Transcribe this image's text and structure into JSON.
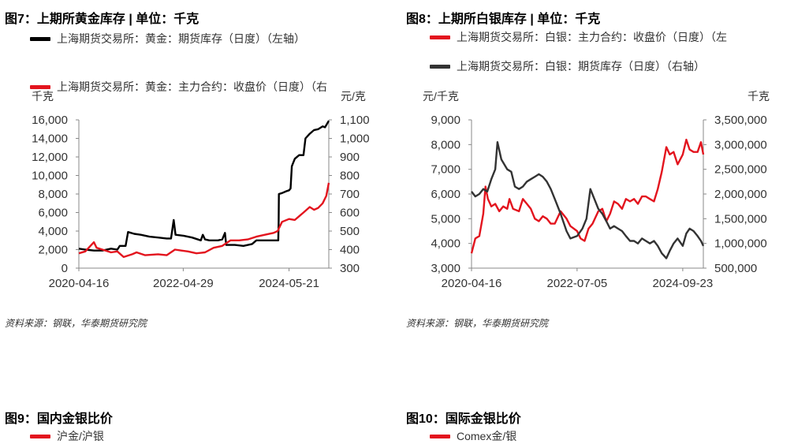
{
  "colors": {
    "black": "#000000",
    "red": "#e3141e",
    "darkgray": "#333333"
  },
  "fig7": {
    "title": "图7：上期所黄金库存 |  单位：千克",
    "legend": [
      "上海期货交易所：黄金：期货库存（日度）（左轴）",
      "上海期货交易所：黄金：主力合约：收盘价（日度）（右"
    ],
    "left_unit": "千克",
    "right_unit": "元/克",
    "source": "资料来源：钢联，华泰期货研究院"
  },
  "fig8": {
    "title": "图8：上期所白银库存 | 单位：千克",
    "legend": [
      "上海期货交易所：白银：主力合约：收盘价（日度）（左",
      "上海期货交易所：白银：期货库存（日度）（右轴）"
    ],
    "left_unit": "元/千克",
    "right_unit": "千克",
    "source": "资料来源：钢联，华泰期货研究院"
  },
  "fig9": {
    "title": "图9：国内金银比价",
    "legend": [
      "沪金/沪银"
    ]
  },
  "fig10": {
    "title": "图10：国际金银比价",
    "legend": [
      "Comex金/银"
    ]
  },
  "chart_data": [
    {
      "type": "line",
      "title": "图7：上期所黄金库存 |  单位：千克",
      "x_ticks": [
        "2020-04-16",
        "2022-04-29",
        "2024-05-21"
      ],
      "x_range": [
        "2020-04-16",
        "2025-02-28"
      ],
      "y_left": {
        "label": "千克",
        "ylim": [
          0,
          16000
        ],
        "ticks": [
          "0",
          "2,000",
          "4,000",
          "6,000",
          "8,000",
          "10,000",
          "12,000",
          "14,000",
          "16,000"
        ]
      },
      "y_right": {
        "label": "元/克",
        "ylim": [
          300,
          1100
        ],
        "ticks": [
          "300",
          "400",
          "500",
          "600",
          "700",
          "800",
          "900",
          "1,000",
          "1,100"
        ]
      },
      "grid": false,
      "legend_position": "top",
      "series": [
        {
          "name": "上海期货交易所：黄金：期货库存（日度）（左轴）",
          "axis": "left",
          "color": "#000000",
          "points": [
            [
              "2020-04-16",
              2100
            ],
            [
              "2020-06-01",
              2000
            ],
            [
              "2020-08-01",
              1900
            ],
            [
              "2020-10-01",
              1900
            ],
            [
              "2020-12-01",
              2100
            ],
            [
              "2021-01-15",
              2000
            ],
            [
              "2021-02-01",
              2400
            ],
            [
              "2021-03-15",
              2400
            ],
            [
              "2021-04-01",
              3900
            ],
            [
              "2021-05-15",
              3700
            ],
            [
              "2021-07-01",
              3600
            ],
            [
              "2021-09-01",
              3400
            ],
            [
              "2021-11-01",
              3300
            ],
            [
              "2022-01-01",
              3200
            ],
            [
              "2022-02-01",
              3200
            ],
            [
              "2022-02-20",
              5200
            ],
            [
              "2022-03-05",
              3600
            ],
            [
              "2022-05-01",
              3500
            ],
            [
              "2022-07-01",
              3300
            ],
            [
              "2022-09-01",
              3000
            ],
            [
              "2022-09-15",
              3600
            ],
            [
              "2022-10-01",
              3100
            ],
            [
              "2022-11-01",
              3000
            ],
            [
              "2022-12-01",
              3000
            ],
            [
              "2023-01-01",
              3000
            ],
            [
              "2023-02-01",
              3100
            ],
            [
              "2023-02-20",
              3800
            ],
            [
              "2023-03-01",
              2500
            ],
            [
              "2023-05-01",
              2500
            ],
            [
              "2023-07-01",
              2400
            ],
            [
              "2023-09-01",
              2600
            ],
            [
              "2023-10-01",
              3000
            ],
            [
              "2023-12-01",
              3000
            ],
            [
              "2024-03-01",
              3000
            ],
            [
              "2024-03-05",
              3000
            ],
            [
              "2024-03-08",
              5000
            ],
            [
              "2024-03-10",
              8000
            ],
            [
              "2024-04-01",
              8100
            ],
            [
              "2024-05-01",
              8300
            ],
            [
              "2024-05-21",
              8400
            ],
            [
              "2024-06-01",
              8600
            ],
            [
              "2024-06-10",
              11000
            ],
            [
              "2024-07-01",
              11800
            ],
            [
              "2024-08-01",
              12200
            ],
            [
              "2024-09-01",
              12200
            ],
            [
              "2024-09-15",
              14000
            ],
            [
              "2024-10-15",
              14500
            ],
            [
              "2024-11-15",
              14900
            ],
            [
              "2024-12-15",
              15000
            ],
            [
              "2025-01-15",
              15300
            ],
            [
              "2025-02-01",
              15200
            ],
            [
              "2025-02-28",
              15900
            ]
          ]
        },
        {
          "name": "上海期货交易所：黄金：主力合约：收盘价（日度）（右",
          "axis": "right",
          "color": "#e3141e",
          "points": [
            [
              "2020-04-16",
              380
            ],
            [
              "2020-06-01",
              390
            ],
            [
              "2020-08-01",
              440
            ],
            [
              "2020-08-20",
              410
            ],
            [
              "2020-10-01",
              400
            ],
            [
              "2020-12-01",
              385
            ],
            [
              "2021-01-15",
              390
            ],
            [
              "2021-03-01",
              360
            ],
            [
              "2021-05-01",
              375
            ],
            [
              "2021-06-01",
              385
            ],
            [
              "2021-08-01",
              370
            ],
            [
              "2021-11-01",
              375
            ],
            [
              "2022-01-01",
              370
            ],
            [
              "2022-03-01",
              400
            ],
            [
              "2022-04-15",
              395
            ],
            [
              "2022-06-01",
              390
            ],
            [
              "2022-08-01",
              380
            ],
            [
              "2022-10-01",
              385
            ],
            [
              "2022-12-01",
              410
            ],
            [
              "2023-02-01",
              420
            ],
            [
              "2023-04-01",
              450
            ],
            [
              "2023-06-01",
              450
            ],
            [
              "2023-08-01",
              455
            ],
            [
              "2023-10-01",
              470
            ],
            [
              "2023-12-01",
              480
            ],
            [
              "2024-02-01",
              490
            ],
            [
              "2024-03-01",
              500
            ],
            [
              "2024-04-01",
              550
            ],
            [
              "2024-05-21",
              565
            ],
            [
              "2024-07-01",
              560
            ],
            [
              "2024-08-01",
              580
            ],
            [
              "2024-09-01",
              600
            ],
            [
              "2024-10-15",
              630
            ],
            [
              "2024-11-15",
              615
            ],
            [
              "2024-12-15",
              625
            ],
            [
              "2025-01-15",
              650
            ],
            [
              "2025-02-10",
              690
            ],
            [
              "2025-02-28",
              760
            ]
          ]
        }
      ]
    },
    {
      "type": "line",
      "title": "图8：上期所白银库存 | 单位：千克",
      "x_ticks": [
        "2020-04-16",
        "2022-07-05",
        "2024-09-23"
      ],
      "x_range": [
        "2020-04-16",
        "2025-02-28"
      ],
      "y_left": {
        "label": "元/千克",
        "ylim": [
          3000,
          9000
        ],
        "ticks": [
          "3,000",
          "4,000",
          "5,000",
          "6,000",
          "7,000",
          "8,000",
          "9,000"
        ]
      },
      "y_right": {
        "label": "千克",
        "ylim": [
          500000,
          3500000
        ],
        "ticks": [
          "500,000",
          "1,000,000",
          "1,500,000",
          "2,000,000",
          "2,500,000",
          "3,000,000",
          "3,500,000"
        ]
      },
      "grid": false,
      "legend_position": "top",
      "series": [
        {
          "name": "上海期货交易所：白银：主力合约：收盘价（日度）（左",
          "axis": "left",
          "color": "#e3141e",
          "points": [
            [
              "2020-04-16",
              3600
            ],
            [
              "2020-05-15",
              4200
            ],
            [
              "2020-06-15",
              4300
            ],
            [
              "2020-07-15",
              5200
            ],
            [
              "2020-08-01",
              6300
            ],
            [
              "2020-08-20",
              5800
            ],
            [
              "2020-09-15",
              5500
            ],
            [
              "2020-10-15",
              5600
            ],
            [
              "2020-11-15",
              5300
            ],
            [
              "2020-12-15",
              5500
            ],
            [
              "2021-01-15",
              5400
            ],
            [
              "2021-02-01",
              5800
            ],
            [
              "2021-03-01",
              5400
            ],
            [
              "2021-04-15",
              5300
            ],
            [
              "2021-05-15",
              5800
            ],
            [
              "2021-06-15",
              5600
            ],
            [
              "2021-07-15",
              5400
            ],
            [
              "2021-08-15",
              5000
            ],
            [
              "2021-09-15",
              4900
            ],
            [
              "2021-10-15",
              5100
            ],
            [
              "2021-11-15",
              5000
            ],
            [
              "2021-12-15",
              4800
            ],
            [
              "2022-01-15",
              4800
            ],
            [
              "2022-03-01",
              5300
            ],
            [
              "2022-04-15",
              5000
            ],
            [
              "2022-05-15",
              4700
            ],
            [
              "2022-07-05",
              4500
            ],
            [
              "2022-08-01",
              4200
            ],
            [
              "2022-09-01",
              4100
            ],
            [
              "2022-10-01",
              4600
            ],
            [
              "2022-11-01",
              4800
            ],
            [
              "2022-12-15",
              5300
            ],
            [
              "2023-01-15",
              5400
            ],
            [
              "2023-02-15",
              4900
            ],
            [
              "2023-03-15",
              5200
            ],
            [
              "2023-04-15",
              5700
            ],
            [
              "2023-05-15",
              5600
            ],
            [
              "2023-06-15",
              5400
            ],
            [
              "2023-07-15",
              5800
            ],
            [
              "2023-08-15",
              5700
            ],
            [
              "2023-09-15",
              5800
            ],
            [
              "2023-10-15",
              5600
            ],
            [
              "2023-11-15",
              5900
            ],
            [
              "2023-12-15",
              5900
            ],
            [
              "2024-01-15",
              5800
            ],
            [
              "2024-02-15",
              5700
            ],
            [
              "2024-03-15",
              6200
            ],
            [
              "2024-04-15",
              6900
            ],
            [
              "2024-05-20",
              7900
            ],
            [
              "2024-06-15",
              7600
            ],
            [
              "2024-07-15",
              7700
            ],
            [
              "2024-08-15",
              7200
            ],
            [
              "2024-09-23",
              7600
            ],
            [
              "2024-10-20",
              8200
            ],
            [
              "2024-11-15",
              7800
            ],
            [
              "2024-12-15",
              7700
            ],
            [
              "2025-01-15",
              7700
            ],
            [
              "2025-02-10",
              8100
            ],
            [
              "2025-02-28",
              7600
            ]
          ]
        },
        {
          "name": "上海期货交易所：白银：期货库存（日度）（右轴）",
          "axis": "right",
          "color": "#333333",
          "points": [
            [
              "2020-04-16",
              2050000
            ],
            [
              "2020-05-15",
              1950000
            ],
            [
              "2020-06-15",
              2000000
            ],
            [
              "2020-07-15",
              2100000
            ],
            [
              "2020-08-15",
              2050000
            ],
            [
              "2020-09-15",
              2300000
            ],
            [
              "2020-10-15",
              2500000
            ],
            [
              "2020-11-01",
              3050000
            ],
            [
              "2020-12-01",
              2700000
            ],
            [
              "2021-01-15",
              2500000
            ],
            [
              "2021-02-15",
              2450000
            ],
            [
              "2021-03-15",
              2150000
            ],
            [
              "2021-04-15",
              2100000
            ],
            [
              "2021-05-15",
              2150000
            ],
            [
              "2021-06-15",
              2250000
            ],
            [
              "2021-07-15",
              2300000
            ],
            [
              "2021-08-15",
              2350000
            ],
            [
              "2021-09-15",
              2400000
            ],
            [
              "2021-10-15",
              2350000
            ],
            [
              "2021-11-15",
              2250000
            ],
            [
              "2021-12-15",
              2100000
            ],
            [
              "2022-01-15",
              1900000
            ],
            [
              "2022-03-01",
              1600000
            ],
            [
              "2022-04-15",
              1250000
            ],
            [
              "2022-05-15",
              1100000
            ],
            [
              "2022-07-05",
              1150000
            ],
            [
              "2022-08-15",
              1300000
            ],
            [
              "2022-09-15",
              1500000
            ],
            [
              "2022-10-15",
              2100000
            ],
            [
              "2022-11-15",
              1900000
            ],
            [
              "2022-12-15",
              1700000
            ],
            [
              "2023-01-15",
              1600000
            ],
            [
              "2023-02-15",
              1450000
            ],
            [
              "2023-03-15",
              1300000
            ],
            [
              "2023-04-15",
              1350000
            ],
            [
              "2023-05-15",
              1300000
            ],
            [
              "2023-06-15",
              1250000
            ],
            [
              "2023-07-15",
              1150000
            ],
            [
              "2023-08-15",
              1050000
            ],
            [
              "2023-09-15",
              1050000
            ],
            [
              "2023-10-15",
              1000000
            ],
            [
              "2023-11-15",
              1100000
            ],
            [
              "2023-12-15",
              1050000
            ],
            [
              "2024-01-15",
              1000000
            ],
            [
              "2024-02-15",
              1050000
            ],
            [
              "2024-03-15",
              950000
            ],
            [
              "2024-04-15",
              800000
            ],
            [
              "2024-05-20",
              700000
            ],
            [
              "2024-06-15",
              850000
            ],
            [
              "2024-07-15",
              1000000
            ],
            [
              "2024-08-15",
              1100000
            ],
            [
              "2024-09-23",
              950000
            ],
            [
              "2024-10-20",
              1200000
            ],
            [
              "2024-11-15",
              1300000
            ],
            [
              "2024-12-15",
              1250000
            ],
            [
              "2025-01-15",
              1150000
            ],
            [
              "2025-02-10",
              1050000
            ],
            [
              "2025-02-28",
              950000
            ]
          ]
        }
      ]
    }
  ]
}
